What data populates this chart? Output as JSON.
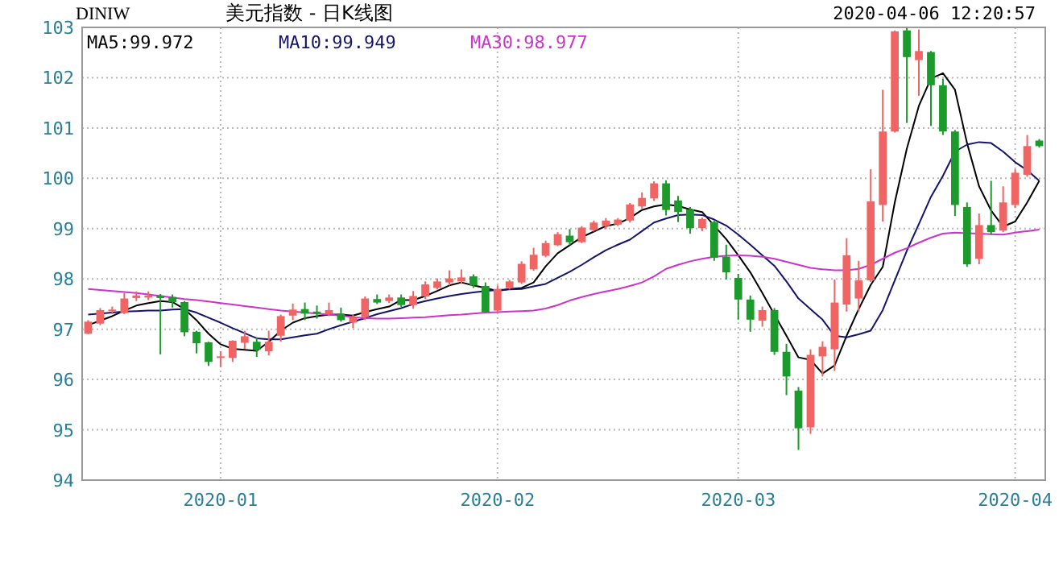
{
  "chart_data": {
    "type": "candlestick",
    "title": "美元指数 - 日K线图",
    "subtitle": "DINIW",
    "annotations": [
      "2020-04-06 12:20:57"
    ],
    "categories": [
      null,
      null,
      null,
      null,
      null,
      null,
      null,
      null,
      null,
      null,
      null,
      "2020-01",
      null,
      null,
      null,
      null,
      null,
      null,
      null,
      null,
      null,
      null,
      null,
      null,
      null,
      null,
      null,
      null,
      null,
      null,
      null,
      null,
      null,
      null,
      "2020-02",
      null,
      null,
      null,
      null,
      null,
      null,
      null,
      null,
      null,
      null,
      null,
      null,
      null,
      null,
      null,
      null,
      null,
      null,
      null,
      "2020-03",
      null,
      null,
      null,
      null,
      null,
      null,
      null,
      null,
      null,
      null,
      null,
      null,
      null,
      null,
      null,
      null,
      null,
      null,
      null,
      null,
      null,
      null,
      "2020-04",
      null,
      null
    ],
    "ohlc": [
      [
        96.91,
        97.18,
        96.9,
        97.15
      ],
      [
        97.11,
        97.42,
        97.08,
        97.38
      ],
      [
        97.37,
        97.45,
        97.3,
        97.39
      ],
      [
        97.32,
        97.72,
        97.3,
        97.61
      ],
      [
        97.62,
        97.75,
        97.56,
        97.67
      ],
      [
        97.63,
        97.75,
        97.58,
        97.67
      ],
      [
        97.67,
        97.7,
        96.5,
        97.62
      ],
      [
        97.64,
        97.69,
        97.43,
        97.54
      ],
      [
        97.54,
        97.56,
        96.86,
        96.94
      ],
      [
        96.95,
        96.97,
        96.52,
        96.72
      ],
      [
        96.74,
        96.75,
        96.27,
        96.35
      ],
      [
        96.43,
        96.56,
        96.25,
        96.46
      ],
      [
        96.43,
        96.78,
        96.35,
        96.77
      ],
      [
        96.73,
        96.97,
        96.61,
        96.86
      ],
      [
        96.75,
        96.84,
        96.45,
        96.59
      ],
      [
        96.56,
        96.97,
        96.48,
        96.75
      ],
      [
        96.87,
        97.29,
        96.75,
        97.26
      ],
      [
        97.27,
        97.51,
        97.18,
        97.39
      ],
      [
        97.4,
        97.53,
        97.18,
        97.31
      ],
      [
        97.35,
        97.47,
        97.21,
        97.33
      ],
      [
        97.31,
        97.53,
        97.26,
        97.38
      ],
      [
        97.31,
        97.43,
        97.15,
        97.18
      ],
      [
        97.13,
        97.29,
        97.02,
        97.24
      ],
      [
        97.24,
        97.65,
        97.18,
        97.61
      ],
      [
        97.6,
        97.69,
        97.5,
        97.53
      ],
      [
        97.56,
        97.69,
        97.52,
        97.63
      ],
      [
        97.63,
        97.69,
        97.44,
        97.48
      ],
      [
        97.48,
        97.76,
        97.41,
        97.66
      ],
      [
        97.65,
        97.95,
        97.6,
        97.89
      ],
      [
        97.82,
        98.01,
        97.79,
        97.95
      ],
      [
        97.93,
        98.17,
        97.87,
        98.01
      ],
      [
        97.95,
        98.19,
        97.9,
        98.03
      ],
      [
        98.05,
        98.09,
        97.82,
        97.87
      ],
      [
        97.86,
        97.93,
        97.33,
        97.34
      ],
      [
        97.37,
        97.87,
        97.34,
        97.8
      ],
      [
        97.82,
        97.98,
        97.79,
        97.95
      ],
      [
        97.93,
        98.35,
        97.9,
        98.3
      ],
      [
        98.19,
        98.62,
        98.16,
        98.48
      ],
      [
        98.46,
        98.76,
        98.43,
        98.71
      ],
      [
        98.67,
        98.93,
        98.65,
        98.89
      ],
      [
        98.86,
        98.99,
        98.67,
        98.73
      ],
      [
        98.73,
        99.05,
        98.71,
        99.02
      ],
      [
        98.97,
        99.16,
        98.94,
        99.12
      ],
      [
        99.05,
        99.21,
        98.99,
        99.16
      ],
      [
        99.08,
        99.21,
        99.05,
        99.18
      ],
      [
        99.16,
        99.51,
        99.12,
        99.48
      ],
      [
        99.44,
        99.72,
        99.4,
        99.61
      ],
      [
        99.6,
        99.94,
        99.55,
        99.9
      ],
      [
        99.9,
        99.96,
        99.26,
        99.37
      ],
      [
        99.56,
        99.65,
        99.13,
        99.33
      ],
      [
        99.38,
        99.43,
        98.9,
        99.01
      ],
      [
        99.01,
        99.22,
        98.95,
        99.19
      ],
      [
        99.13,
        99.17,
        98.36,
        98.42
      ],
      [
        98.44,
        98.68,
        97.99,
        98.13
      ],
      [
        98.02,
        98.1,
        97.19,
        97.59
      ],
      [
        97.59,
        97.67,
        96.95,
        97.19
      ],
      [
        97.17,
        97.45,
        97.05,
        97.38
      ],
      [
        97.38,
        97.42,
        96.49,
        96.55
      ],
      [
        96.55,
        96.71,
        95.69,
        96.06
      ],
      [
        95.78,
        95.85,
        94.6,
        95.03
      ],
      [
        95.05,
        96.6,
        94.92,
        96.49
      ],
      [
        96.46,
        96.76,
        96.06,
        96.65
      ],
      [
        96.6,
        97.99,
        96.17,
        97.53
      ],
      [
        97.49,
        98.81,
        97.35,
        98.47
      ],
      [
        97.61,
        98.36,
        97.35,
        97.97
      ],
      [
        97.97,
        100.18,
        97.94,
        99.54
      ],
      [
        99.47,
        101.76,
        99.14,
        100.93
      ],
      [
        100.93,
        102.94,
        100.91,
        102.92
      ],
      [
        102.94,
        102.99,
        101.1,
        102.41
      ],
      [
        102.35,
        102.96,
        101.64,
        102.53
      ],
      [
        102.51,
        102.53,
        101.04,
        101.85
      ],
      [
        101.85,
        101.98,
        100.86,
        100.93
      ],
      [
        100.93,
        100.96,
        99.25,
        99.47
      ],
      [
        99.43,
        99.52,
        98.24,
        98.29
      ],
      [
        98.4,
        99.3,
        98.29,
        99.07
      ],
      [
        99.07,
        99.95,
        98.88,
        98.93
      ],
      [
        98.96,
        99.84,
        98.93,
        99.52
      ],
      [
        99.47,
        100.18,
        99.41,
        100.11
      ],
      [
        100.07,
        100.86,
        100.03,
        100.64
      ],
      [
        100.75,
        100.78,
        100.61,
        100.64
      ]
    ],
    "colors": [
      "#f06464",
      "#f06464",
      "#f06464",
      "#f06464",
      "#f06464",
      "#f06464",
      "#1c9a2c",
      "#1c9a2c",
      "#1c9a2c",
      "#1c9a2c",
      "#1c9a2c",
      "#f06464",
      "#f06464",
      "#f06464",
      "#1c9a2c",
      "#f06464",
      "#f06464",
      "#f06464",
      "#1c9a2c",
      "#1c9a2c",
      "#f06464",
      "#1c9a2c",
      "#f06464",
      "#f06464",
      "#1c9a2c",
      "#f06464",
      "#1c9a2c",
      "#f06464",
      "#f06464",
      "#f06464",
      "#f06464",
      "#f06464",
      "#1c9a2c",
      "#1c9a2c",
      "#f06464",
      "#f06464",
      "#f06464",
      "#f06464",
      "#f06464",
      "#f06464",
      "#1c9a2c",
      "#f06464",
      "#f06464",
      "#f06464",
      "#f06464",
      "#f06464",
      "#f06464",
      "#f06464",
      "#1c9a2c",
      "#1c9a2c",
      "#1c9a2c",
      "#f06464",
      "#1c9a2c",
      "#1c9a2c",
      "#1c9a2c",
      "#1c9a2c",
      "#f06464",
      "#1c9a2c",
      "#1c9a2c",
      "#1c9a2c",
      "#f06464",
      "#f06464",
      "#f06464",
      "#f06464",
      "#f06464",
      "#f06464",
      "#f06464",
      "#f06464",
      "#1c9a2c",
      "#f06464",
      "#1c9a2c",
      "#1c9a2c",
      "#1c9a2c",
      "#1c9a2c",
      "#f06464",
      "#1c9a2c",
      "#f06464",
      "#f06464",
      "#f06464",
      "#1c9a2c"
    ],
    "series": [
      {
        "type": "line",
        "name": "MA5:99.972",
        "color": "#000000",
        "values": [
          97.08,
          97.17,
          97.26,
          97.37,
          97.47,
          97.52,
          97.56,
          97.54,
          97.4,
          97.18,
          96.91,
          96.7,
          96.61,
          96.59,
          96.57,
          96.75,
          96.97,
          97.13,
          97.22,
          97.26,
          97.29,
          97.29,
          97.27,
          97.34,
          97.4,
          97.45,
          97.58,
          97.58,
          97.66,
          97.76,
          97.87,
          97.93,
          97.87,
          97.82,
          97.76,
          97.8,
          97.82,
          97.93,
          98.25,
          98.51,
          98.67,
          98.83,
          98.94,
          99.05,
          99.1,
          99.21,
          99.37,
          99.44,
          99.48,
          99.45,
          99.38,
          99.33,
          99.06,
          98.79,
          98.47,
          98.13,
          97.72,
          97.29,
          96.87,
          96.44,
          96.39,
          96.12,
          96.28,
          96.87,
          97.4,
          97.88,
          98.24,
          99.52,
          100.59,
          101.44,
          101.98,
          102.09,
          101.76,
          100.7,
          99.84,
          99.36,
          99.04,
          99.14,
          99.52,
          99.95
        ]
      },
      {
        "type": "line",
        "name": "MA10:99.949",
        "color": "#14146e",
        "values": [
          97.29,
          97.31,
          97.33,
          97.35,
          97.36,
          97.37,
          97.37,
          97.39,
          97.4,
          97.33,
          97.23,
          97.13,
          97.02,
          96.92,
          96.82,
          96.8,
          96.8,
          96.84,
          96.88,
          96.91,
          97.0,
          97.08,
          97.15,
          97.22,
          97.3,
          97.36,
          97.42,
          97.5,
          97.56,
          97.61,
          97.66,
          97.7,
          97.73,
          97.76,
          97.78,
          97.79,
          97.8,
          97.85,
          97.9,
          98.02,
          98.14,
          98.28,
          98.43,
          98.57,
          98.68,
          98.78,
          98.95,
          99.12,
          99.2,
          99.27,
          99.28,
          99.27,
          99.18,
          99.06,
          98.88,
          98.68,
          98.47,
          98.26,
          97.95,
          97.61,
          97.4,
          97.19,
          96.87,
          96.84,
          96.9,
          96.97,
          97.38,
          97.97,
          98.56,
          99.09,
          99.63,
          100.05,
          100.53,
          100.67,
          100.72,
          100.7,
          100.53,
          100.32,
          100.16,
          99.95
        ]
      },
      {
        "type": "line",
        "name": "MA30:98.977",
        "color": "#cc33cc",
        "values": [
          97.8,
          97.78,
          97.76,
          97.74,
          97.72,
          97.69,
          97.66,
          97.63,
          97.6,
          97.58,
          97.55,
          97.52,
          97.49,
          97.46,
          97.43,
          97.4,
          97.37,
          97.35,
          97.33,
          97.31,
          97.29,
          97.27,
          97.24,
          97.22,
          97.21,
          97.21,
          97.22,
          97.23,
          97.24,
          97.26,
          97.28,
          97.29,
          97.31,
          97.33,
          97.34,
          97.35,
          97.36,
          97.37,
          97.41,
          97.48,
          97.57,
          97.64,
          97.7,
          97.75,
          97.8,
          97.86,
          97.93,
          98.05,
          98.2,
          98.28,
          98.35,
          98.4,
          98.44,
          98.46,
          98.47,
          98.46,
          98.44,
          98.4,
          98.34,
          98.28,
          98.22,
          98.19,
          98.17,
          98.17,
          98.2,
          98.28,
          98.4,
          98.52,
          98.61,
          98.72,
          98.82,
          98.9,
          98.92,
          98.91,
          98.9,
          98.89,
          98.88,
          98.92,
          98.95,
          98.98
        ]
      }
    ],
    "ylim": [
      94,
      103
    ],
    "yticks": [
      94,
      95,
      96,
      97,
      98,
      99,
      100,
      101,
      102,
      103
    ],
    "grid": true,
    "legend": "top left"
  }
}
